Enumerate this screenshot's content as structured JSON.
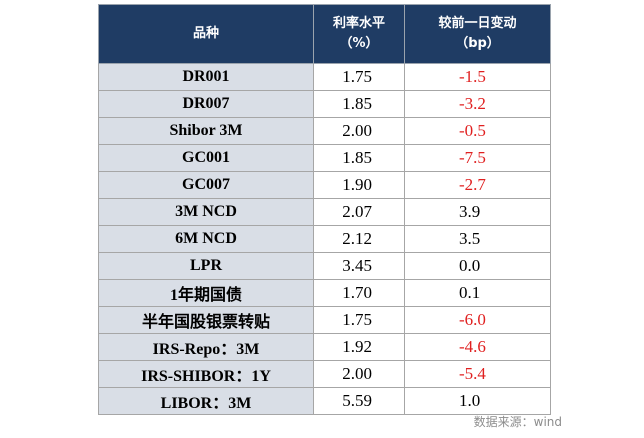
{
  "table": {
    "headers": {
      "name": "品种",
      "rate_line1": "利率水平",
      "rate_line2": "（%）",
      "change_line1": "较前一日变动",
      "change_line2": "（bp）"
    },
    "rows": [
      {
        "name": "DR001",
        "rate": "1.75",
        "change": "-1.5",
        "negative": true
      },
      {
        "name": "DR007",
        "rate": "1.85",
        "change": "-3.2",
        "negative": true
      },
      {
        "name": "Shibor 3M",
        "rate": "2.00",
        "change": "-0.5",
        "negative": true
      },
      {
        "name": "GC001",
        "rate": "1.85",
        "change": "-7.5",
        "negative": true
      },
      {
        "name": "GC007",
        "rate": "1.90",
        "change": "-2.7",
        "negative": true
      },
      {
        "name": "3M NCD",
        "rate": "2.07",
        "change": "3.9",
        "negative": false
      },
      {
        "name": "6M NCD",
        "rate": "2.12",
        "change": "3.5",
        "negative": false
      },
      {
        "name": "LPR",
        "rate": "3.45",
        "change": "0.0",
        "negative": false
      },
      {
        "name": "1年期国债",
        "rate": "1.70",
        "change": "0.1",
        "negative": false
      },
      {
        "name": "半年国股银票转贴",
        "rate": "1.75",
        "change": "-6.0",
        "negative": true
      },
      {
        "name": "IRS-Repo：3M",
        "rate": "1.92",
        "change": "-4.6",
        "negative": true
      },
      {
        "name": "IRS-SHIBOR：1Y",
        "rate": "2.00",
        "change": "-5.4",
        "negative": true
      },
      {
        "name": "LIBOR：3M",
        "rate": "5.59",
        "change": "1.0",
        "negative": false
      }
    ]
  },
  "source": "数据来源：wind",
  "colors": {
    "header_bg": "#1f3c64",
    "name_bg": "#d9dee6",
    "negative": "#e02020"
  }
}
